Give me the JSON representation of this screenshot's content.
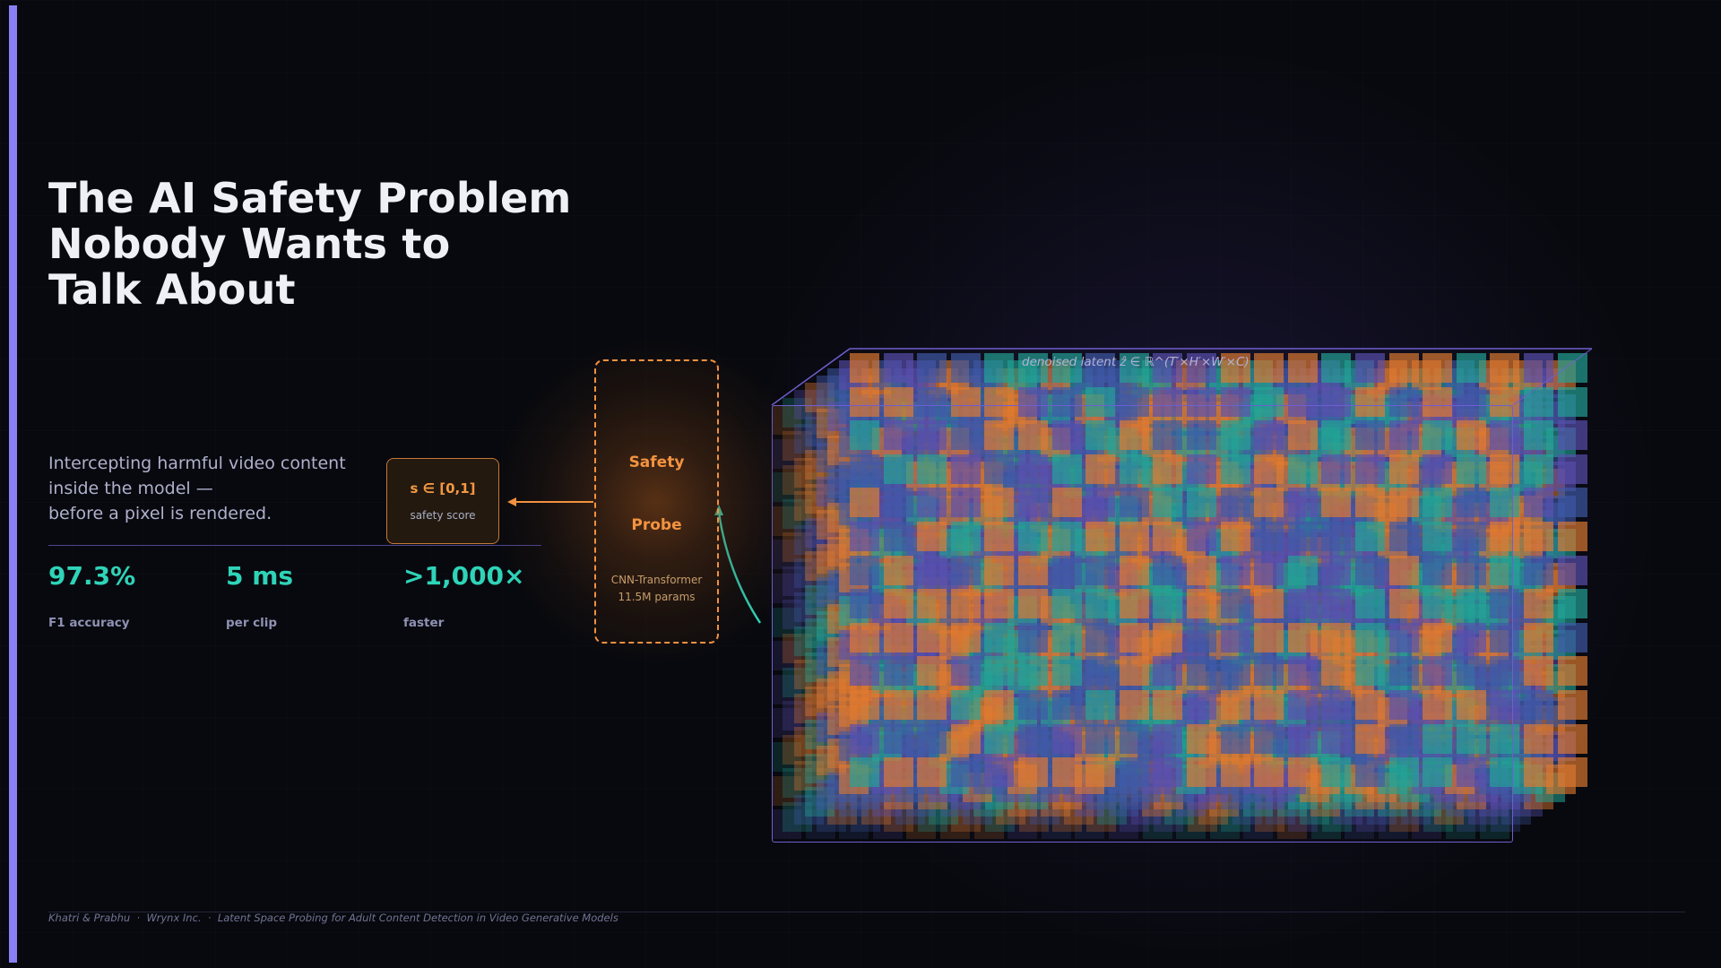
{
  "slide": {
    "title": "The AI Safety Problem\nNobody Wants to\nTalk About",
    "subtitle": "Intercepting harmful video content\ninside the model —\nbefore a pixel is rendered.",
    "stats": [
      {
        "value": "97.3%",
        "label": "F1 accuracy"
      },
      {
        "value": "5 ms",
        "label": "per clip"
      },
      {
        "value": ">1,000×",
        "label": "faster"
      }
    ],
    "footer": "Khatri & Prabhu  ·  Wrynx Inc.  ·  Latent Space Probing for Adult Content Detection in Video Generative Models"
  },
  "diagram": {
    "score_box": {
      "formula": "s ∈ [0,1]",
      "label": "safety score"
    },
    "probe": {
      "title_line1": "Safety",
      "title_line2": "Probe",
      "description": "CNN-Transformer\n11.5M params"
    },
    "latent": {
      "label": "denoised latent  ẑ  ∈  ℝ^(T′×H′×W′×C)",
      "rows": 13,
      "cols": 22,
      "layers": 8
    },
    "colors": {
      "accent": "#8b7ff5",
      "teal": "#2fd3b8",
      "orange": "#f29140",
      "cell_purple": "#5a4fb0",
      "cell_blue": "#3f5aa8",
      "cell_teal": "#23a396",
      "cell_orange": "#e07a30"
    }
  }
}
